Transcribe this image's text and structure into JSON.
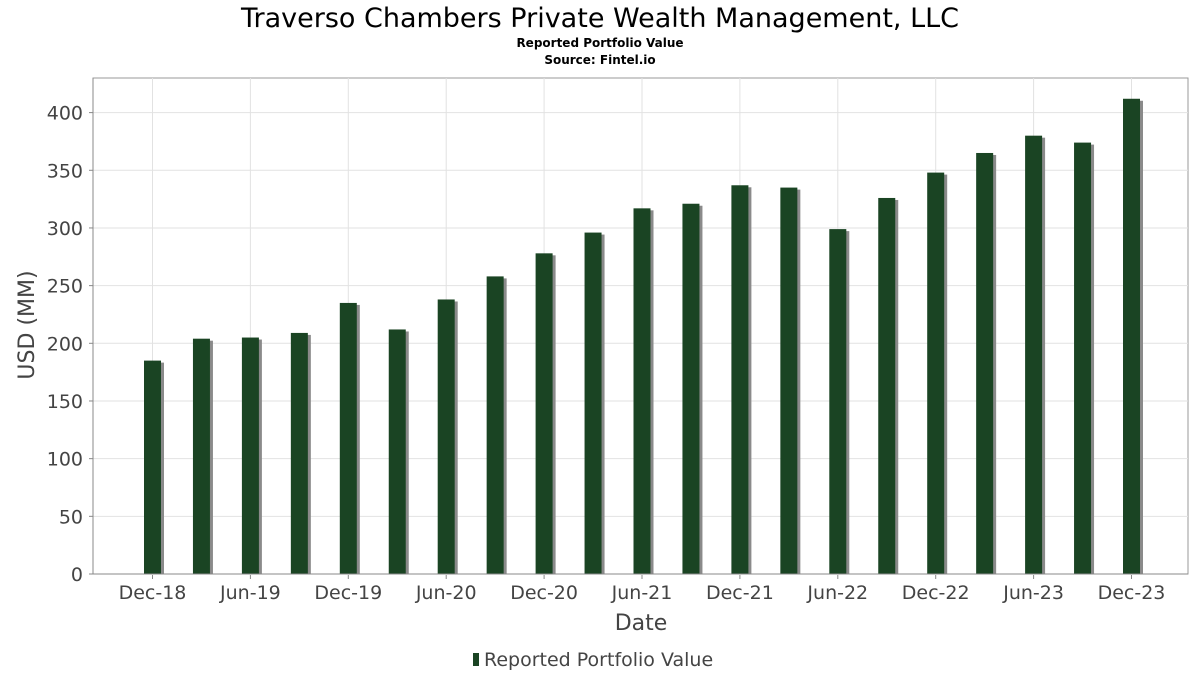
{
  "chart_data": {
    "type": "bar",
    "title": "Traverso Chambers Private Wealth Management, LLC",
    "subtitle": "Reported Portfolio Value",
    "source": "Source: Fintel.io",
    "xlabel": "Date",
    "ylabel": "USD (MM)",
    "ylim": [
      0,
      430
    ],
    "yticks": [
      0,
      50,
      100,
      150,
      200,
      250,
      300,
      350,
      400
    ],
    "grid": true,
    "legend_position": "bottom-center",
    "bar_color": "#1a4423",
    "shadow_color": "#8a8a8a",
    "x": [
      "2018-12",
      "2019-03",
      "2019-06",
      "2019-09",
      "2019-12",
      "2020-03",
      "2020-06",
      "2020-09",
      "2020-12",
      "2021-03",
      "2021-06",
      "2021-09",
      "2021-12",
      "2022-03",
      "2022-06",
      "2022-09",
      "2022-12",
      "2023-03",
      "2023-06",
      "2023-09",
      "2023-12"
    ],
    "xtick_labels": [
      "Dec-18",
      "Jun-19",
      "Dec-19",
      "Jun-20",
      "Dec-20",
      "Jun-21",
      "Dec-21",
      "Jun-22",
      "Dec-22",
      "Jun-23",
      "Dec-23"
    ],
    "series": [
      {
        "name": "Reported Portfolio Value",
        "values": [
          185,
          204,
          205,
          209,
          235,
          212,
          238,
          258,
          278,
          296,
          317,
          321,
          337,
          335,
          299,
          326,
          348,
          365,
          380,
          374,
          412
        ]
      }
    ]
  }
}
